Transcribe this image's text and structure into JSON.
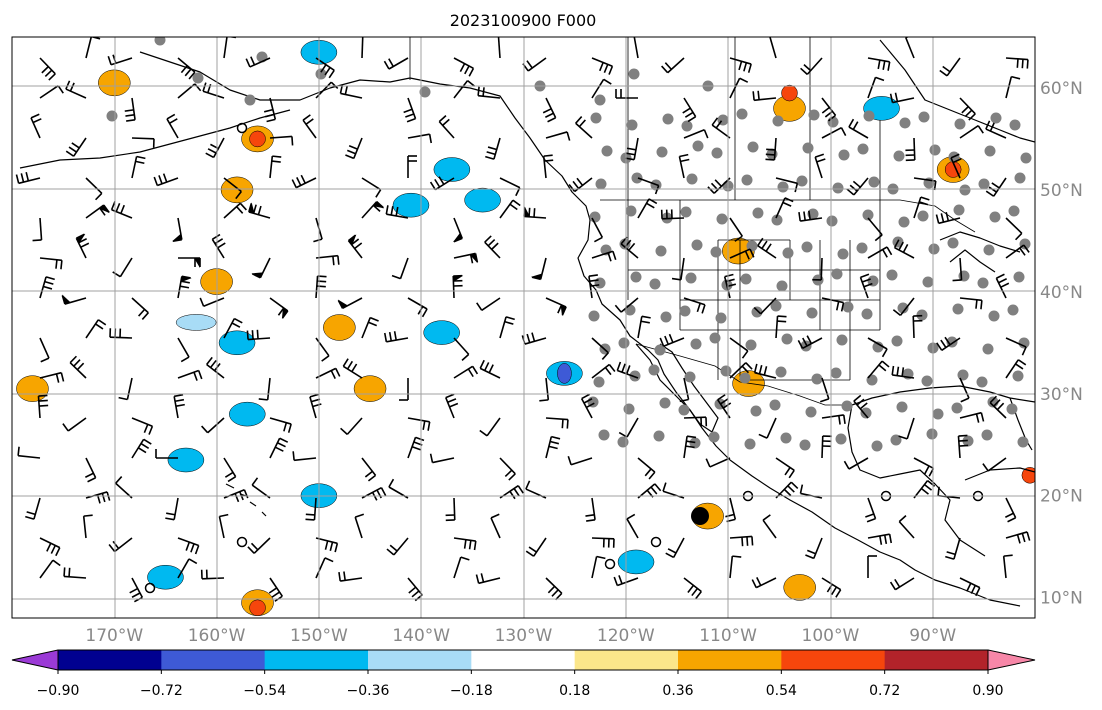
{
  "title": "2023100900 F000",
  "map": {
    "lon_range": [
      -180,
      -80
    ],
    "lat_range": [
      8,
      65
    ],
    "gridlines": true,
    "lat_labels": [
      {
        "lat": 60,
        "text": "60°N"
      },
      {
        "lat": 50,
        "text": "50°N"
      },
      {
        "lat": 40,
        "text": "40°N"
      },
      {
        "lat": 30,
        "text": "30°N"
      },
      {
        "lat": 20,
        "text": "20°N"
      },
      {
        "lat": 10,
        "text": "10°N"
      }
    ],
    "lon_labels": [
      {
        "lon": -170,
        "text": "170°W"
      },
      {
        "lon": -160,
        "text": "160°W"
      },
      {
        "lon": -150,
        "text": "150°W"
      },
      {
        "lon": -140,
        "text": "140°W"
      },
      {
        "lon": -130,
        "text": "130°W"
      },
      {
        "lon": -120,
        "text": "120°W"
      },
      {
        "lon": -110,
        "text": "110°W"
      },
      {
        "lon": -100,
        "text": "100°W"
      },
      {
        "lon": -90,
        "text": "90°W"
      }
    ]
  },
  "colorbar": {
    "extend": "both",
    "under_color": "#9b3ad6",
    "over_color": "#f787a8",
    "colors": [
      "#010190",
      "#3e5ad6",
      "#00b9f0",
      "#a8dcf6",
      "#ffffff",
      "#fbe68a",
      "#f7a500",
      "#f6460c",
      "#b2232a"
    ],
    "ticks": [
      {
        "v": -0.9,
        "text": "−0.90"
      },
      {
        "v": -0.72,
        "text": "−0.72"
      },
      {
        "v": -0.54,
        "text": "−0.54"
      },
      {
        "v": -0.36,
        "text": "−0.36"
      },
      {
        "v": -0.18,
        "text": "−0.18"
      },
      {
        "v": 0.18,
        "text": "0.18"
      },
      {
        "v": 0.36,
        "text": "0.36"
      },
      {
        "v": 0.54,
        "text": "0.54"
      },
      {
        "v": 0.72,
        "text": "0.72"
      },
      {
        "v": 0.9,
        "text": "0.90"
      }
    ]
  },
  "features": {
    "blue_blobs": [
      {
        "lon": -137,
        "lat": 52,
        "color": "#00b9f0"
      },
      {
        "lon": -134,
        "lat": 49,
        "color": "#00b9f0"
      },
      {
        "lon": -141,
        "lat": 48.5,
        "color": "#00b9f0"
      },
      {
        "lon": -126,
        "lat": 32,
        "color": "#00b9f0"
      },
      {
        "lon": -126,
        "lat": 32,
        "color": "#3e5ad6"
      },
      {
        "lon": -158,
        "lat": 35,
        "color": "#00b9f0"
      },
      {
        "lon": -163,
        "lat": 23.5,
        "color": "#00b9f0"
      },
      {
        "lon": -157,
        "lat": 28,
        "color": "#00b9f0"
      },
      {
        "lon": -150,
        "lat": 20,
        "color": "#00b9f0"
      },
      {
        "lon": -119,
        "lat": 13.5,
        "color": "#00b9f0"
      },
      {
        "lon": -165,
        "lat": 12,
        "color": "#00b9f0"
      },
      {
        "lon": -138,
        "lat": 36,
        "color": "#00b9f0"
      },
      {
        "lon": -95,
        "lat": 58,
        "color": "#00b9f0"
      },
      {
        "lon": -162,
        "lat": 37,
        "color": "#a8dcf6"
      },
      {
        "lon": -150,
        "lat": 63.5,
        "color": "#00b9f0"
      }
    ],
    "orange_blobs": [
      {
        "lon": -104,
        "lat": 58,
        "color": "#f7a500"
      },
      {
        "lon": -104,
        "lat": 59.5,
        "color": "#f6460c"
      },
      {
        "lon": -156,
        "lat": 55,
        "color": "#f7a500"
      },
      {
        "lon": -156,
        "lat": 55,
        "color": "#f6460c"
      },
      {
        "lon": -109,
        "lat": 44,
        "color": "#f7a500"
      },
      {
        "lon": -145,
        "lat": 30.5,
        "color": "#f7a500"
      },
      {
        "lon": -148,
        "lat": 36.5,
        "color": "#f7a500"
      },
      {
        "lon": -112,
        "lat": 18,
        "color": "#f7a500"
      },
      {
        "lon": -156,
        "lat": 9.5,
        "color": "#f7a500"
      },
      {
        "lon": -156,
        "lat": 9,
        "color": "#f6460c"
      },
      {
        "lon": -170,
        "lat": 60.5,
        "color": "#f7a500"
      },
      {
        "lon": -88,
        "lat": 52,
        "color": "#f7a500"
      },
      {
        "lon": -88,
        "lat": 52,
        "color": "#f6460c"
      },
      {
        "lon": -158,
        "lat": 50,
        "color": "#f7a500"
      },
      {
        "lon": -108,
        "lat": 31,
        "color": "#f7a500"
      },
      {
        "lon": -178,
        "lat": 30.5,
        "color": "#f7a500"
      },
      {
        "lon": -103,
        "lat": 11,
        "color": "#f7a500"
      },
      {
        "lon": -80.5,
        "lat": 22,
        "color": "#f6460c"
      },
      {
        "lon": -160,
        "lat": 41,
        "color": "#f7a500"
      }
    ]
  }
}
